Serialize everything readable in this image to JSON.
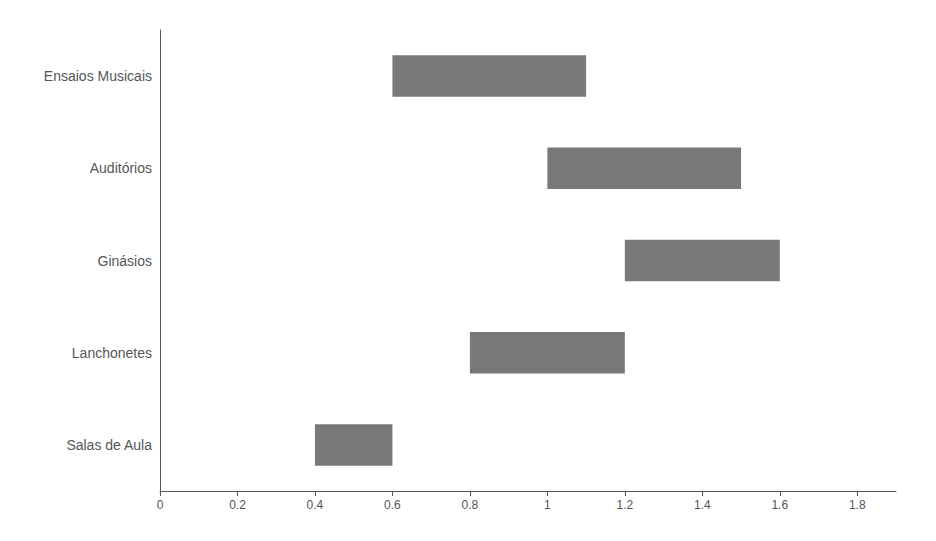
{
  "chart_data": {
    "type": "bar",
    "orientation": "horizontal",
    "categories": [
      "Ensaios Musicais",
      "Auditórios",
      "Ginásios",
      "Lanchonetes",
      "Salas de Aula"
    ],
    "starts": [
      0.6,
      1.0,
      1.2,
      0.8,
      0.4
    ],
    "ends": [
      1.1,
      1.5,
      1.6,
      1.2,
      0.6
    ],
    "color": "#787878",
    "xlim": [
      0,
      1.9
    ],
    "xticks": [
      0,
      0.2,
      0.4,
      0.6,
      0.8,
      1.0,
      1.2,
      1.4,
      1.6,
      1.8
    ],
    "grid": false
  }
}
